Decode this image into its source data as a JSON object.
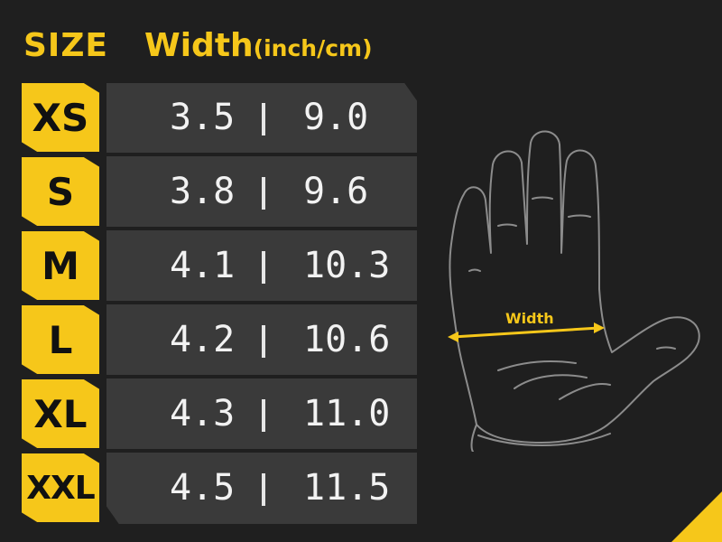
{
  "header": {
    "size_label": "SIZE",
    "width_label": "Width",
    "unit_label": "(inch/cm)"
  },
  "rows": [
    {
      "size": "XS",
      "inch": "3.5",
      "cm": "9.0"
    },
    {
      "size": "S",
      "inch": "3.8",
      "cm": "9.6"
    },
    {
      "size": "M",
      "inch": "4.1",
      "cm": "10.3"
    },
    {
      "size": "L",
      "inch": "4.2",
      "cm": "10.6"
    },
    {
      "size": "XL",
      "inch": "4.3",
      "cm": "11.0"
    },
    {
      "size": "XXL",
      "inch": "4.5",
      "cm": "11.5"
    }
  ],
  "diagram": {
    "measure_label": "Width",
    "icon": "glove-hand-outline-icon"
  },
  "colors": {
    "accent": "#f6c71a",
    "background": "#1f1f1f",
    "panel": "#3a3a3a",
    "text": "#f2f2f2"
  }
}
